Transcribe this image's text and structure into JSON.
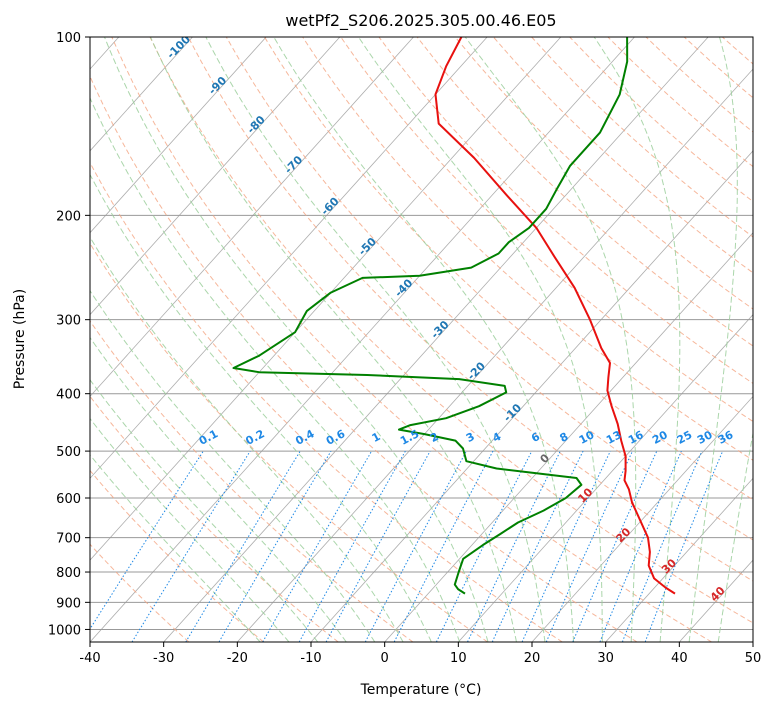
{
  "chart_data": {
    "type": "line",
    "subtype": "skew-t log-p diagram",
    "title": "wetPf2_S206.2025.305.00.46.E05",
    "xlabel": "Temperature (°C)",
    "ylabel": "Pressure (hPa)",
    "xlim": [
      -40,
      50
    ],
    "ylim": [
      1050,
      100
    ],
    "x_ticks": [
      -40,
      -30,
      -20,
      -10,
      0,
      10,
      20,
      30,
      40,
      50
    ],
    "y_ticks": [
      100,
      200,
      300,
      400,
      500,
      600,
      700,
      800,
      900,
      1000
    ],
    "grid": true,
    "series": [
      {
        "name": "Temperature",
        "color": "#e8110f",
        "points": [
          {
            "p": 870,
            "t": 33.5
          },
          {
            "p": 850,
            "t": 31.5
          },
          {
            "p": 820,
            "t": 28.8
          },
          {
            "p": 780,
            "t": 26.5
          },
          {
            "p": 740,
            "t": 25.0
          },
          {
            "p": 700,
            "t": 23.0
          },
          {
            "p": 650,
            "t": 19.5
          },
          {
            "p": 610,
            "t": 16.5
          },
          {
            "p": 580,
            "t": 14.5
          },
          {
            "p": 560,
            "t": 12.8
          },
          {
            "p": 540,
            "t": 11.8
          },
          {
            "p": 510,
            "t": 10.0
          },
          {
            "p": 480,
            "t": 7.5
          },
          {
            "p": 450,
            "t": 5.0
          },
          {
            "p": 420,
            "t": 2.0
          },
          {
            "p": 395,
            "t": -0.5
          },
          {
            "p": 375,
            "t": -2.0
          },
          {
            "p": 355,
            "t": -3.5
          },
          {
            "p": 335,
            "t": -6.5
          },
          {
            "p": 300,
            "t": -11.5
          },
          {
            "p": 265,
            "t": -17.5
          },
          {
            "p": 235,
            "t": -24.0
          },
          {
            "p": 210,
            "t": -30.0
          },
          {
            "p": 185,
            "t": -38.0
          },
          {
            "p": 160,
            "t": -47.0
          },
          {
            "p": 140,
            "t": -56.0
          },
          {
            "p": 125,
            "t": -60.0
          },
          {
            "p": 112,
            "t": -62.0
          },
          {
            "p": 100,
            "t": -63.5
          }
        ]
      },
      {
        "name": "Dewpoint",
        "color": "#008000",
        "points": [
          {
            "p": 870,
            "t": 5.0
          },
          {
            "p": 855,
            "t": 3.5
          },
          {
            "p": 840,
            "t": 2.5
          },
          {
            "p": 800,
            "t": 1.5
          },
          {
            "p": 760,
            "t": 0.5
          },
          {
            "p": 720,
            "t": 1.5
          },
          {
            "p": 690,
            "t": 2.5
          },
          {
            "p": 660,
            "t": 3.5
          },
          {
            "p": 630,
            "t": 5.5
          },
          {
            "p": 600,
            "t": 7.0
          },
          {
            "p": 570,
            "t": 7.5
          },
          {
            "p": 555,
            "t": 6.0
          },
          {
            "p": 545,
            "t": 0.0
          },
          {
            "p": 535,
            "t": -6.0
          },
          {
            "p": 520,
            "t": -11.0
          },
          {
            "p": 495,
            "t": -13.0
          },
          {
            "p": 480,
            "t": -15.0
          },
          {
            "p": 468,
            "t": -20.0
          },
          {
            "p": 460,
            "t": -24.0
          },
          {
            "p": 452,
            "t": -23.0
          },
          {
            "p": 440,
            "t": -19.0
          },
          {
            "p": 420,
            "t": -16.0
          },
          {
            "p": 398,
            "t": -14.0
          },
          {
            "p": 388,
            "t": -15.0
          },
          {
            "p": 378,
            "t": -22.0
          },
          {
            "p": 372,
            "t": -35.0
          },
          {
            "p": 368,
            "t": -50.0
          },
          {
            "p": 362,
            "t": -54.0
          },
          {
            "p": 345,
            "t": -52.0
          },
          {
            "p": 315,
            "t": -50.0
          },
          {
            "p": 290,
            "t": -51.0
          },
          {
            "p": 270,
            "t": -50.0
          },
          {
            "p": 255,
            "t": -47.5
          },
          {
            "p": 253,
            "t": -40.0
          },
          {
            "p": 245,
            "t": -34.0
          },
          {
            "p": 232,
            "t": -32.0
          },
          {
            "p": 222,
            "t": -32.0
          },
          {
            "p": 210,
            "t": -31.0
          },
          {
            "p": 195,
            "t": -31.0
          },
          {
            "p": 180,
            "t": -32.0
          },
          {
            "p": 165,
            "t": -33.0
          },
          {
            "p": 145,
            "t": -33.0
          },
          {
            "p": 125,
            "t": -35.0
          },
          {
            "p": 110,
            "t": -38.0
          },
          {
            "p": 100,
            "t": -41.0
          }
        ]
      }
    ],
    "dry_adiabat_labels": [
      "-100",
      "-90",
      "-80",
      "-70",
      "-60",
      "-50",
      "-40",
      "-30",
      "-20",
      "-10"
    ],
    "moist_adiabat_labels": [
      "0",
      "10",
      "20",
      "30",
      "40"
    ],
    "mixing_ratio_labels": [
      "0.1",
      "0.2",
      "0.4",
      "0.6",
      "1",
      "1.5",
      "2",
      "3",
      "4",
      "6",
      "8",
      "10",
      "13",
      "16",
      "20",
      "25",
      "30",
      "36"
    ],
    "colors": {
      "dry_adiabat": "#f4a582",
      "moist_adiabat": "#9ccf9c",
      "mixing_ratio": "#1e88e5",
      "isotherm": "#999999",
      "isobar": "#999999"
    }
  }
}
